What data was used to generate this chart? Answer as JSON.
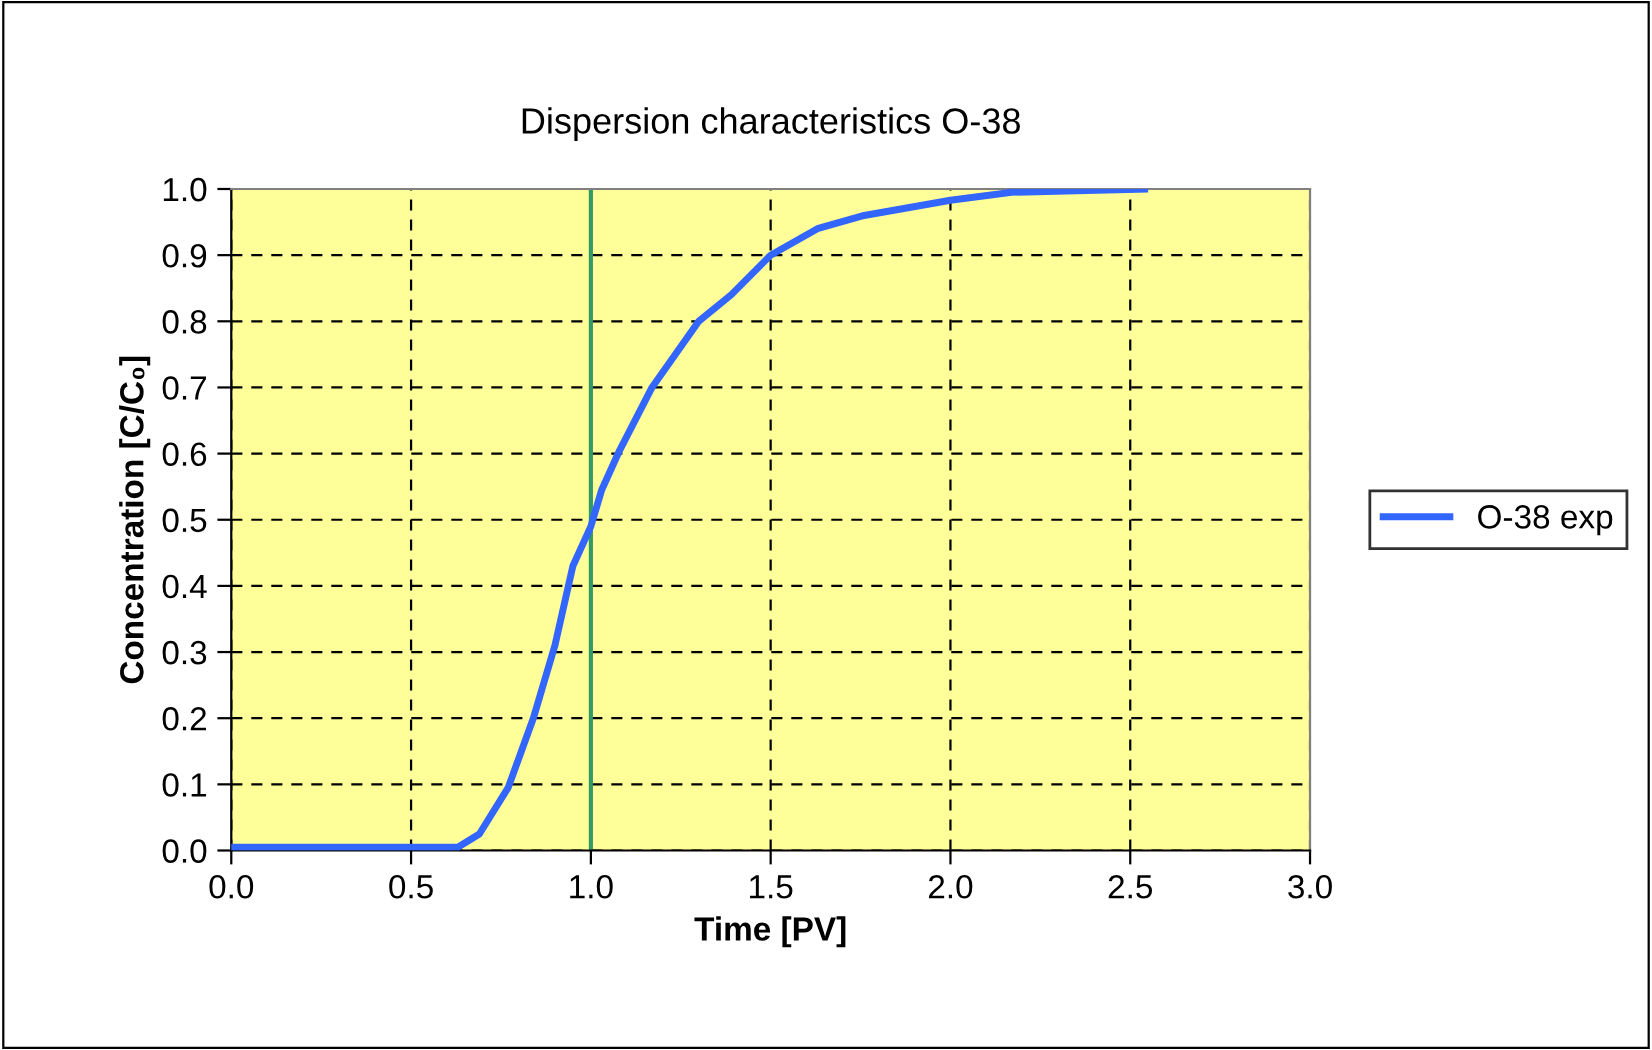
{
  "chart_data": {
    "type": "line",
    "title": "Dispersion characteristics O-38",
    "xlabel": "Time [PV]",
    "ylabel": "Concentration [C/C₀]",
    "series": [
      {
        "name": "O-38 exp",
        "color": "#3366ff",
        "x": [
          0.0,
          0.3,
          0.5,
          0.63,
          0.69,
          0.77,
          0.84,
          0.9,
          0.95,
          1.0,
          1.03,
          1.08,
          1.17,
          1.3,
          1.39,
          1.5,
          1.63,
          1.76,
          2.0,
          2.17,
          2.54
        ],
        "values": [
          0.005,
          0.005,
          0.005,
          0.005,
          0.025,
          0.095,
          0.2,
          0.31,
          0.43,
          0.49,
          0.545,
          0.605,
          0.7,
          0.8,
          0.84,
          0.9,
          0.94,
          0.96,
          0.983,
          0.995,
          1.0
        ]
      }
    ],
    "xlim": [
      0,
      3
    ],
    "xticks": [
      {
        "value": 0,
        "label": "0.0"
      },
      {
        "value": 0.5,
        "label": "0.5"
      },
      {
        "value": 1,
        "label": "1.0"
      },
      {
        "value": 1.5,
        "label": "1.5"
      },
      {
        "value": 2,
        "label": "2.0"
      },
      {
        "value": 2.5,
        "label": "2.5"
      },
      {
        "value": 3,
        "label": "3.0"
      }
    ],
    "ylim": [
      0,
      1
    ],
    "yticks": [
      {
        "value": 0,
        "label": "0.0"
      },
      {
        "value": 0.1,
        "label": "0.1"
      },
      {
        "value": 0.2,
        "label": "0.2"
      },
      {
        "value": 0.3,
        "label": "0.3"
      },
      {
        "value": 0.4,
        "label": "0.4"
      },
      {
        "value": 0.5,
        "label": "0.5"
      },
      {
        "value": 0.6,
        "label": "0.6"
      },
      {
        "value": 0.7,
        "label": "0.7"
      },
      {
        "value": 0.8,
        "label": "0.8"
      },
      {
        "value": 0.9,
        "label": "0.9"
      },
      {
        "value": 1,
        "label": "1.0"
      }
    ],
    "ref_lines": [
      {
        "axis": "x",
        "value": 1.0,
        "color": "#339966"
      }
    ],
    "grid": true,
    "legend": "right",
    "marker": "none",
    "line_style": "solid"
  }
}
